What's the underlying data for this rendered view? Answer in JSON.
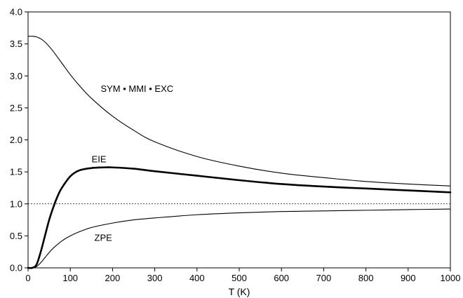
{
  "chart_data": {
    "type": "line",
    "title": "",
    "xlabel": "T (K)",
    "ylabel": "",
    "xlim": [
      0,
      1000
    ],
    "ylim": [
      0.0,
      4.0
    ],
    "x_ticks": [
      0,
      100,
      200,
      300,
      400,
      500,
      600,
      700,
      800,
      900,
      1000
    ],
    "y_ticks": [
      "0.0",
      "0.5",
      "1.0",
      "1.5",
      "2.0",
      "2.5",
      "3.0",
      "3.5",
      "4.0"
    ],
    "reference_line": {
      "y": 1.0,
      "style": "dotted"
    },
    "grid": false,
    "series": [
      {
        "name": "SYM • MMI • EXC",
        "line_width": "thin",
        "x": [
          0,
          10,
          20,
          30,
          40,
          50,
          60,
          80,
          100,
          120,
          150,
          200,
          250,
          300,
          400,
          500,
          600,
          700,
          800,
          900,
          1000
        ],
        "y": [
          3.62,
          3.62,
          3.61,
          3.58,
          3.53,
          3.46,
          3.38,
          3.2,
          3.02,
          2.86,
          2.65,
          2.37,
          2.15,
          1.97,
          1.74,
          1.59,
          1.48,
          1.41,
          1.35,
          1.31,
          1.28
        ]
      },
      {
        "name": "EIE",
        "line_width": "thick",
        "x": [
          0,
          10,
          20,
          30,
          40,
          50,
          60,
          70,
          80,
          100,
          120,
          150,
          180,
          200,
          250,
          300,
          400,
          500,
          600,
          700,
          800,
          900,
          1000
        ],
        "y": [
          0.0,
          0.0,
          0.05,
          0.25,
          0.5,
          0.75,
          0.95,
          1.12,
          1.25,
          1.43,
          1.52,
          1.56,
          1.57,
          1.57,
          1.55,
          1.51,
          1.44,
          1.37,
          1.31,
          1.27,
          1.24,
          1.21,
          1.18
        ]
      },
      {
        "name": "ZPE",
        "line_width": "thin",
        "x": [
          0,
          10,
          20,
          30,
          40,
          50,
          60,
          80,
          100,
          120,
          150,
          200,
          250,
          300,
          400,
          500,
          600,
          700,
          800,
          900,
          1000
        ],
        "y": [
          0.0,
          0.0,
          0.02,
          0.08,
          0.16,
          0.24,
          0.31,
          0.42,
          0.5,
          0.56,
          0.63,
          0.7,
          0.75,
          0.78,
          0.83,
          0.86,
          0.88,
          0.89,
          0.9,
          0.91,
          0.92
        ]
      }
    ],
    "annotations": [
      {
        "text": "SYM • MMI • EXC",
        "x": 258,
        "y": 2.75
      },
      {
        "text": "EIE",
        "x": 168,
        "y": 1.65
      },
      {
        "text": "ZPE",
        "x": 178,
        "y": 0.42
      }
    ]
  }
}
